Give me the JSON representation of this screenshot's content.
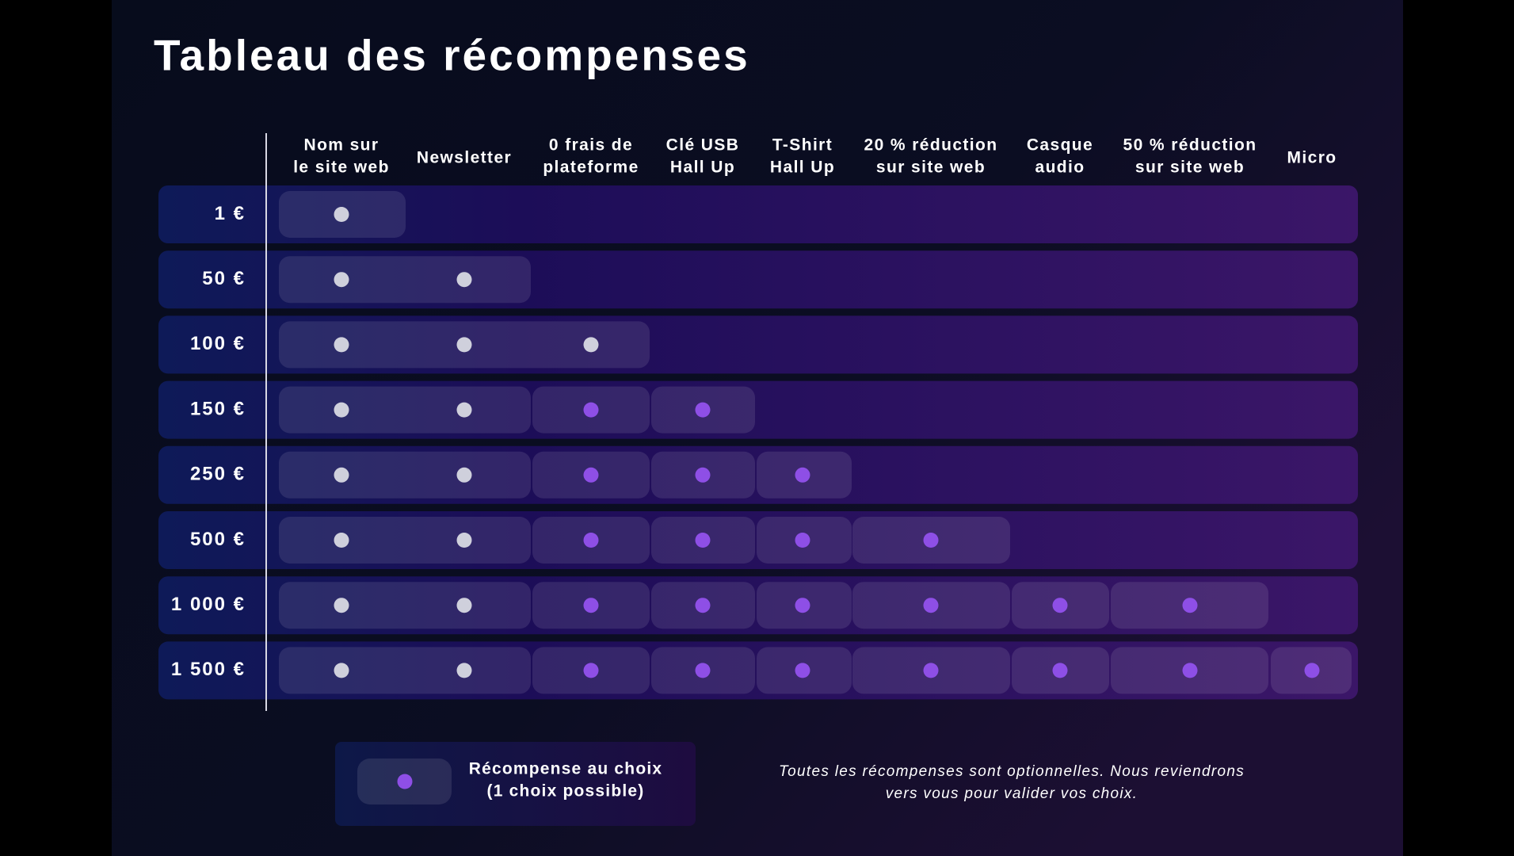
{
  "title": "Tableau des récompenses",
  "columns": [
    [
      "Nom sur",
      "le site web"
    ],
    [
      "Newsletter"
    ],
    [
      "0 frais de",
      "plateforme"
    ],
    [
      "Clé USB",
      "Hall Up"
    ],
    [
      "T-Shirt",
      "Hall Up"
    ],
    [
      "20 % réduction",
      "sur site web"
    ],
    [
      "Casque",
      "audio"
    ],
    [
      "50 % réduction",
      "sur site web"
    ],
    [
      "Micro"
    ]
  ],
  "rows": [
    {
      "tier": "1 €",
      "cells": [
        "#cfd0dc",
        null,
        null,
        null,
        null,
        null,
        null,
        null,
        null
      ]
    },
    {
      "tier": "50 €",
      "cells": [
        "#cfd0dc",
        "#cfd0dc",
        null,
        null,
        null,
        null,
        null,
        null,
        null
      ]
    },
    {
      "tier": "100 €",
      "cells": [
        "#cfd0dc",
        "#cfd0dc",
        "#cfd0dc",
        null,
        null,
        null,
        null,
        null,
        null
      ]
    },
    {
      "tier": "150 €",
      "cells": [
        "#cfd0dc",
        "#cfd0dc",
        "#8e4fe6",
        "#8e4fe6",
        null,
        null,
        null,
        null,
        null
      ]
    },
    {
      "tier": "250 €",
      "cells": [
        "#cfd0dc",
        "#cfd0dc",
        "#8e4fe6",
        "#8e4fe6",
        "#8e4fe6",
        null,
        null,
        null,
        null
      ]
    },
    {
      "tier": "500 €",
      "cells": [
        "#cfd0dc",
        "#cfd0dc",
        "#8e4fe6",
        "#8e4fe6",
        "#8e4fe6",
        "#8e4fe6",
        null,
        null,
        null
      ]
    },
    {
      "tier": "1 000 €",
      "cells": [
        "#cfd0dc",
        "#cfd0dc",
        "#8e4fe6",
        "#8e4fe6",
        "#8e4fe6",
        "#8e4fe6",
        "#8e4fe6",
        "#8e4fe6",
        null
      ]
    },
    {
      "tier": "1 500 €",
      "cells": [
        "#cfd0dc",
        "#cfd0dc",
        "#8e4fe6",
        "#8e4fe6",
        "#8e4fe6",
        "#8e4fe6",
        "#8e4fe6",
        "#8e4fe6",
        "#8e4fe6"
      ]
    }
  ],
  "legend": {
    "color": "#8e4fe6",
    "lines": [
      "Récompense au choix",
      "(1 choix possible)"
    ]
  },
  "note": [
    "Toutes les récompenses sont optionnelles. Nous reviendrons",
    "vers vous pour valider vos choix."
  ]
}
